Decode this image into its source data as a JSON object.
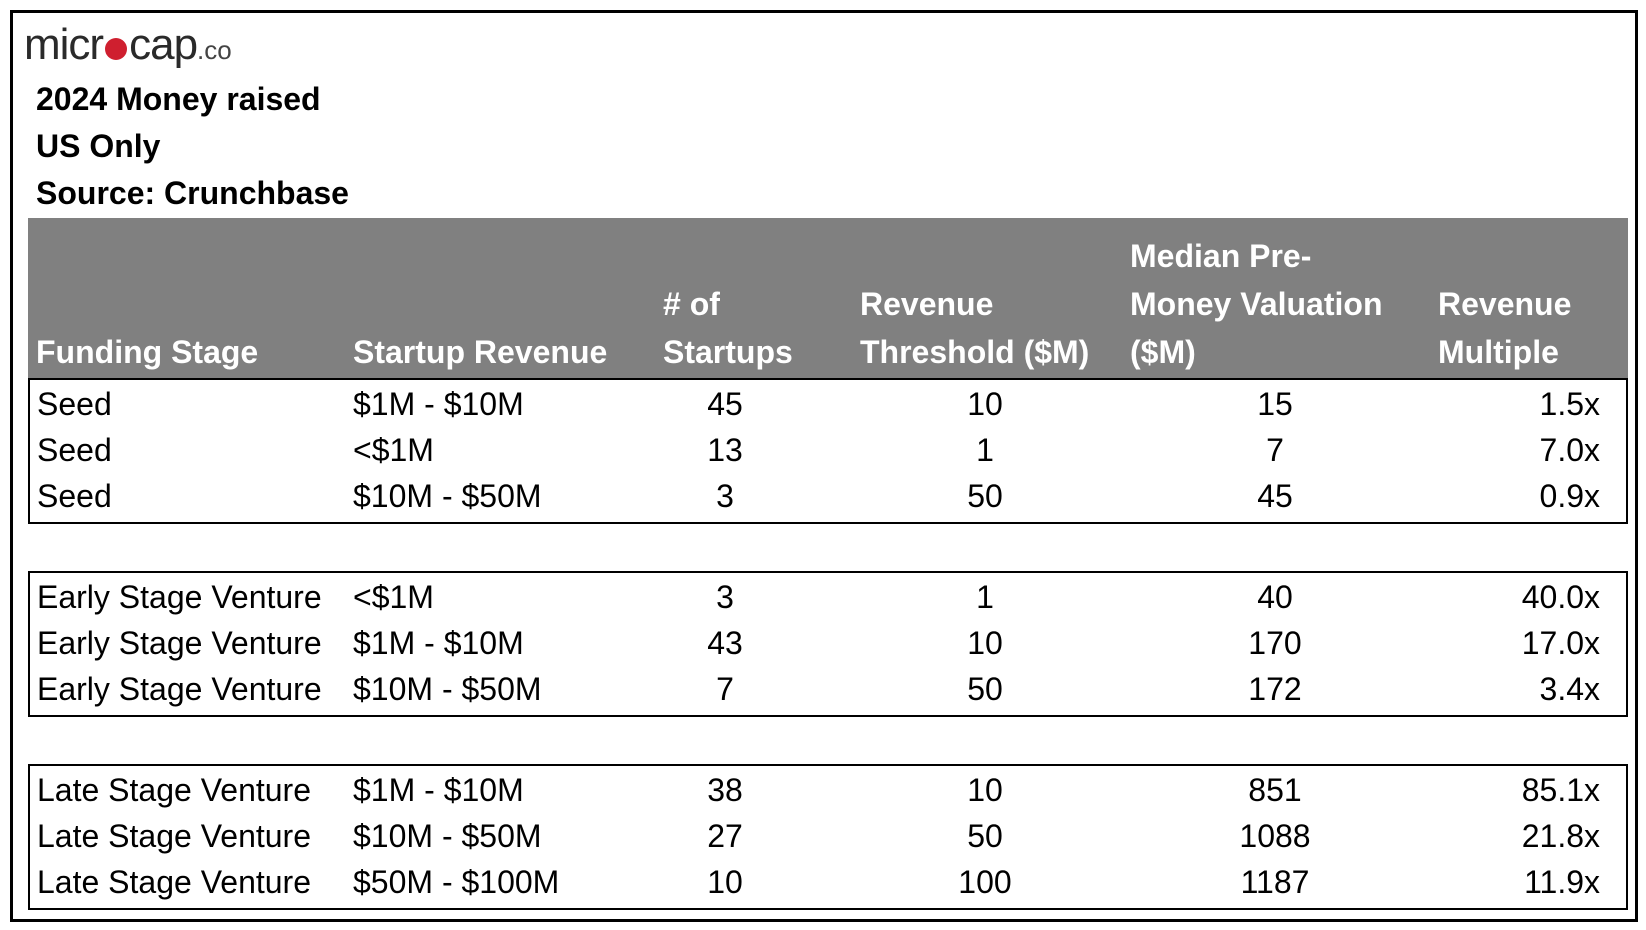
{
  "logo": {
    "part1": "micr",
    "part2": "cap",
    "suffix": ".co"
  },
  "title_lines": [
    "2024 Money raised",
    "US Only",
    "Source: Crunchbase"
  ],
  "chart_data": {
    "type": "table",
    "columns": [
      "Funding Stage",
      "Startup Revenue",
      "# of Startups",
      "Revenue Threshold ($M)",
      "Median Pre-Money Valuation ($M)",
      "Revenue Multiple"
    ],
    "header_lines": {
      "stage": [
        "Funding Stage"
      ],
      "rev": [
        "Startup Revenue"
      ],
      "count": [
        "# of",
        "Startups"
      ],
      "thresh": [
        "Revenue",
        "Threshold ($M)"
      ],
      "val": [
        "Median Pre-",
        "Money Valuation",
        "($M)"
      ],
      "mult": [
        "Revenue",
        "Multiple"
      ]
    },
    "groups": [
      {
        "rows": [
          [
            "Seed",
            "$1M - $10M",
            "45",
            "10",
            "15",
            "1.5x"
          ],
          [
            "Seed",
            "<$1M",
            "13",
            "1",
            "7",
            "7.0x"
          ],
          [
            "Seed",
            "$10M - $50M",
            "3",
            "50",
            "45",
            "0.9x"
          ]
        ]
      },
      {
        "rows": [
          [
            "Early Stage Venture",
            "<$1M",
            "3",
            "1",
            "40",
            "40.0x"
          ],
          [
            "Early Stage Venture",
            "$1M - $10M",
            "43",
            "10",
            "170",
            "17.0x"
          ],
          [
            "Early Stage Venture",
            "$10M - $50M",
            "7",
            "50",
            "172",
            "3.4x"
          ]
        ]
      },
      {
        "rows": [
          [
            "Late Stage Venture",
            "$1M - $10M",
            "38",
            "10",
            "851",
            "85.1x"
          ],
          [
            "Late Stage Venture",
            "$10M - $50M",
            "27",
            "50",
            "1088",
            "21.8x"
          ],
          [
            "Late Stage Venture",
            "$50M - $100M",
            "10",
            "100",
            "1187",
            "11.9x"
          ]
        ]
      }
    ],
    "colors": {
      "header_bg": "#808080",
      "header_text": "#ffffff",
      "logo_dot": "#cf1f2f"
    }
  }
}
